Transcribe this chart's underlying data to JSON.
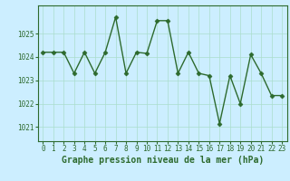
{
  "x": [
    0,
    1,
    2,
    3,
    4,
    5,
    6,
    7,
    8,
    9,
    10,
    11,
    12,
    13,
    14,
    15,
    16,
    17,
    18,
    19,
    20,
    21,
    22,
    23
  ],
  "y": [
    1024.2,
    1024.2,
    1024.2,
    1023.3,
    1024.2,
    1023.3,
    1024.2,
    1025.7,
    1023.3,
    1024.2,
    1024.15,
    1025.55,
    1025.55,
    1023.3,
    1024.2,
    1023.3,
    1023.2,
    1021.15,
    1023.2,
    1022.0,
    1024.1,
    1023.3,
    1022.35,
    1022.35
  ],
  "line_color": "#2d6a2d",
  "marker": "D",
  "markersize": 2.5,
  "linewidth": 1.0,
  "background_color": "#cceeff",
  "grid_color": "#aaddcc",
  "title": "Graphe pression niveau de la mer (hPa)",
  "title_fontsize": 7,
  "title_color": "#2d6a2d",
  "title_fontweight": "bold",
  "xlabel_ticks": [
    0,
    1,
    2,
    3,
    4,
    5,
    6,
    7,
    8,
    9,
    10,
    11,
    12,
    13,
    14,
    15,
    16,
    17,
    18,
    19,
    20,
    21,
    22,
    23
  ],
  "yticks": [
    1021,
    1022,
    1023,
    1024,
    1025
  ],
  "ylim": [
    1020.4,
    1026.2
  ],
  "xlim": [
    -0.5,
    23.5
  ],
  "tick_color": "#2d6a2d",
  "tick_fontsize": 5.5,
  "spine_color": "#2d6a2d",
  "figwidth": 3.2,
  "figheight": 2.0,
  "dpi": 100
}
